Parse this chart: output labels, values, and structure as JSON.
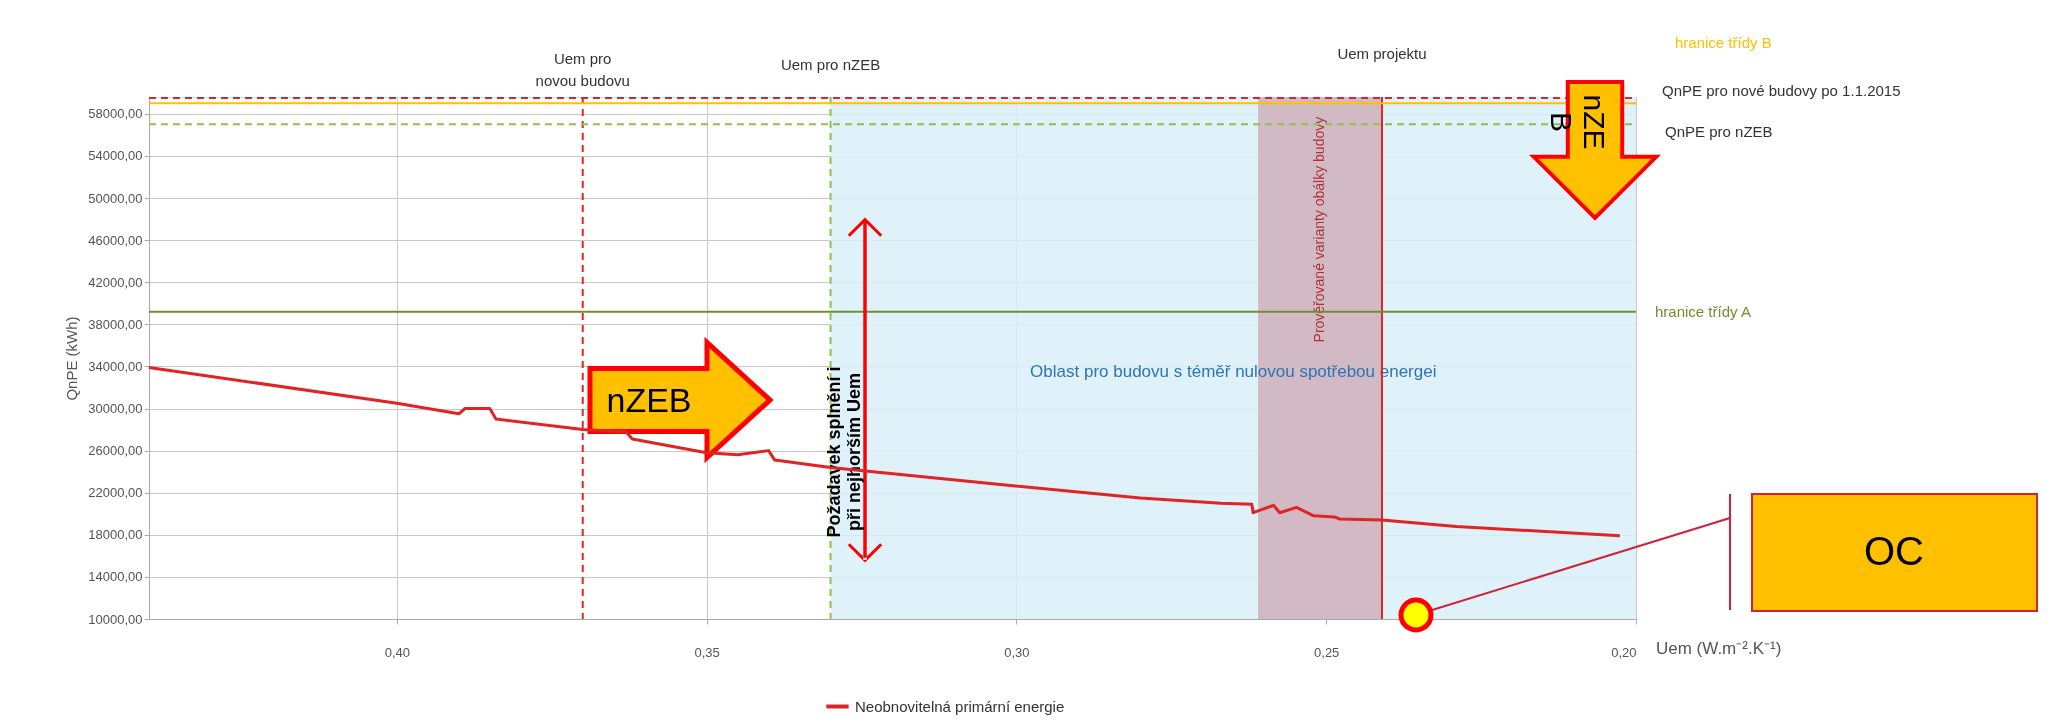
{
  "chart_data": {
    "type": "line",
    "xlabel": "Uem (W.m⁻².K⁻¹)",
    "ylabel": "QnPE (kWh)",
    "xlim": [
      0.44,
      0.2
    ],
    "ylim": [
      10000,
      59600
    ],
    "xticks": [
      {
        "value": 0.4,
        "label": "0,40"
      },
      {
        "value": 0.35,
        "label": "0,35"
      },
      {
        "value": 0.3,
        "label": "0,30"
      },
      {
        "value": 0.25,
        "label": "0,25"
      },
      {
        "value": 0.2,
        "label": "0,20"
      }
    ],
    "yticks": [
      {
        "value": 10000,
        "label": "10000,00"
      },
      {
        "value": 14000,
        "label": "14000,00"
      },
      {
        "value": 18000,
        "label": "18000,00"
      },
      {
        "value": 22000,
        "label": "22000,00"
      },
      {
        "value": 26000,
        "label": "26000,00"
      },
      {
        "value": 30000,
        "label": "30000,00"
      },
      {
        "value": 34000,
        "label": "34000,00"
      },
      {
        "value": 38000,
        "label": "38000,00"
      },
      {
        "value": 42000,
        "label": "42000,00"
      },
      {
        "value": 46000,
        "label": "46000,00"
      },
      {
        "value": 50000,
        "label": "50000,00"
      },
      {
        "value": 54000,
        "label": "54000,00"
      },
      {
        "value": 58000,
        "label": "58000,00"
      }
    ],
    "grid": true,
    "legend": "bottom",
    "line_style": "solid",
    "marker": "none",
    "series": [
      {
        "name": "Neobnovitelná primární energie",
        "color": "#e02424",
        "x": [
          0.44,
          0.4,
          0.39,
          0.389,
          0.385,
          0.384,
          0.37,
          0.363,
          0.362,
          0.35,
          0.345,
          0.34,
          0.339,
          0.33,
          0.303,
          0.28,
          0.267,
          0.262,
          0.2618,
          0.2585,
          0.2575,
          0.2548,
          0.252,
          0.2487,
          0.2478,
          0.241,
          0.229,
          0.2026
        ],
        "values": [
          33900,
          30500,
          29500,
          30000,
          30000,
          29000,
          28000,
          27800,
          27100,
          25800,
          25600,
          26000,
          25100,
          24400,
          22800,
          21500,
          21000,
          20900,
          20100,
          20800,
          20100,
          20600,
          19800,
          19700,
          19500,
          19400,
          18800,
          17900
        ]
      }
    ],
    "ref_lines": [
      {
        "axis": "x",
        "value": 0.37,
        "label": "Uem pro\nnovou budovu",
        "color": "#e02424",
        "line_style": "dashed"
      },
      {
        "axis": "x",
        "value": 0.33,
        "label": "Uem pro nZEB",
        "color": "#92c050",
        "line_style": "dashed"
      },
      {
        "axis": "x",
        "value": 0.241,
        "label": "Uem projektu",
        "color": "#e02424",
        "line_style": "solid"
      },
      {
        "axis": "y",
        "value": 59500,
        "label": "QnPE pro nové budovy po 1.1.2015",
        "color": "#e02424",
        "line_style": "dashed"
      },
      {
        "axis": "y",
        "value": 59000,
        "label": "hranice třídy B",
        "color": "#ffc000",
        "line_style": "solid"
      },
      {
        "axis": "y",
        "value": 57000,
        "label": "QnPE pro nZEB",
        "color": "#92c050",
        "line_style": "dashed"
      },
      {
        "axis": "y",
        "value": 39200,
        "label": "hranice třídy A",
        "color": "#6f8f2f",
        "line_style": "solid"
      }
    ],
    "bands": [
      {
        "axis": "x",
        "from": 0.33,
        "to": 0.2,
        "label": "Oblast pro budovu s téměř nulovou spotřebou energei",
        "color": "#d9eef8"
      },
      {
        "axis": "x",
        "from": 0.261,
        "to": 0.241,
        "label": "Prověřované varianty obálky budovy",
        "color": "#cfb0bb"
      }
    ],
    "annotations": [
      "nZEB",
      "nZE\nB",
      "Požadavek splnění i\npři nejhorším Uem",
      "OC"
    ]
  }
}
